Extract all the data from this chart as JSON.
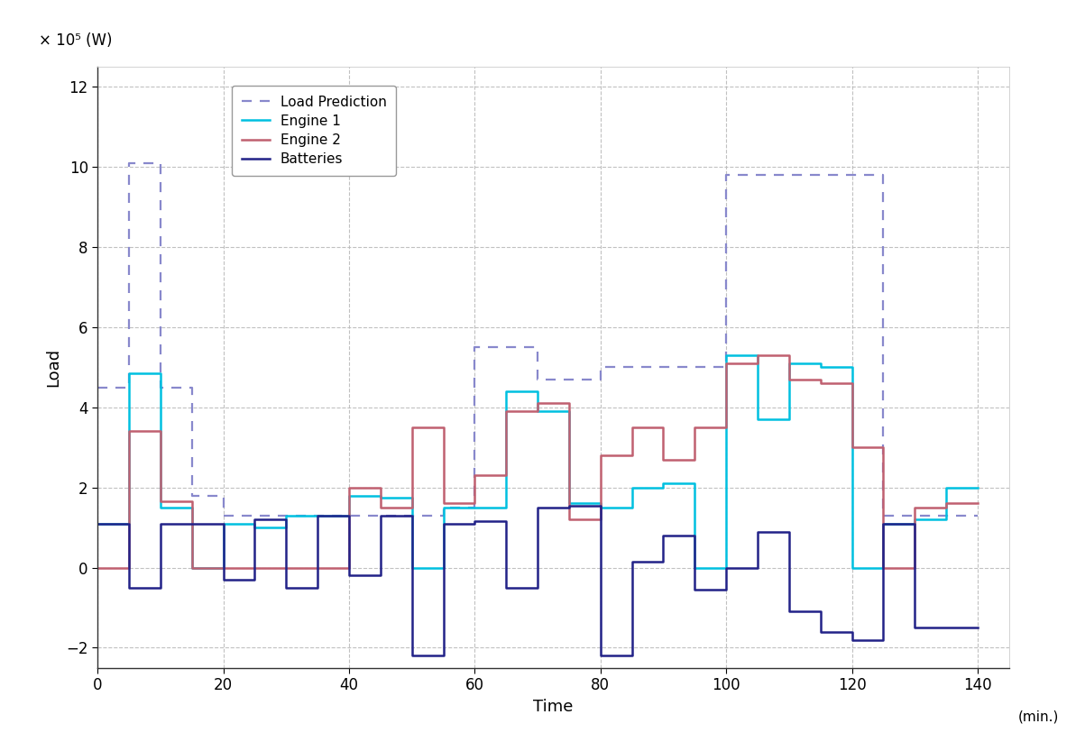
{
  "xlabel": "Time",
  "ylabel": "Load",
  "unit_label": "× 10⁵ (W)",
  "min_label": "(min.)",
  "ylim": [
    -2.5,
    12.5
  ],
  "xlim": [
    0,
    145
  ],
  "yticks": [
    -2,
    0,
    2,
    4,
    6,
    8,
    10,
    12
  ],
  "xticks": [
    0,
    20,
    40,
    60,
    80,
    100,
    120,
    140
  ],
  "background_color": "#ffffff",
  "grid_color": "#bbbbbb",
  "load_prediction_color": "#8888cc",
  "engine1_color": "#00c0e0",
  "engine2_color": "#c06070",
  "batteries_color": "#222288",
  "load_prediction_x": [
    0,
    5,
    10,
    15,
    20,
    25,
    30,
    35,
    40,
    45,
    50,
    55,
    60,
    65,
    70,
    75,
    80,
    85,
    90,
    95,
    100,
    105,
    110,
    115,
    120,
    125,
    130,
    135,
    140
  ],
  "load_prediction_y": [
    4.5,
    10.1,
    4.5,
    1.8,
    1.3,
    1.3,
    1.3,
    1.3,
    1.3,
    1.3,
    1.3,
    1.5,
    5.5,
    5.5,
    4.7,
    4.7,
    5.0,
    5.0,
    5.0,
    5.0,
    9.8,
    9.8,
    9.8,
    9.8,
    9.8,
    1.3,
    1.3,
    1.3,
    1.3
  ],
  "engine1_x": [
    0,
    5,
    10,
    15,
    20,
    25,
    30,
    35,
    40,
    45,
    50,
    55,
    60,
    65,
    70,
    75,
    80,
    85,
    90,
    95,
    100,
    105,
    110,
    115,
    120,
    125,
    130,
    135,
    140
  ],
  "engine1_y": [
    1.1,
    4.85,
    1.5,
    0.0,
    1.1,
    1.0,
    1.3,
    1.3,
    1.8,
    1.75,
    0.0,
    1.5,
    1.5,
    4.4,
    3.9,
    1.6,
    1.5,
    2.0,
    2.1,
    0.0,
    5.3,
    3.7,
    5.1,
    5.0,
    0.0,
    1.1,
    1.2,
    2.0,
    2.0
  ],
  "engine2_x": [
    0,
    5,
    10,
    15,
    20,
    25,
    30,
    35,
    40,
    45,
    50,
    55,
    60,
    65,
    70,
    75,
    80,
    85,
    90,
    95,
    100,
    105,
    110,
    115,
    120,
    125,
    130,
    135,
    140
  ],
  "engine2_y": [
    0.0,
    3.4,
    1.65,
    0.0,
    0.0,
    0.0,
    0.0,
    0.0,
    2.0,
    1.5,
    3.5,
    1.6,
    2.3,
    3.9,
    4.1,
    1.2,
    2.8,
    3.5,
    2.7,
    3.5,
    5.1,
    5.3,
    4.7,
    4.6,
    3.0,
    0.0,
    1.5,
    1.6,
    1.6
  ],
  "batteries_x": [
    0,
    5,
    10,
    15,
    20,
    25,
    30,
    35,
    40,
    45,
    50,
    55,
    60,
    65,
    70,
    75,
    80,
    85,
    90,
    95,
    100,
    105,
    110,
    115,
    120,
    125,
    130,
    135,
    140
  ],
  "batteries_y": [
    1.1,
    -0.5,
    1.1,
    1.1,
    -0.3,
    1.2,
    -0.5,
    1.3,
    -0.2,
    1.3,
    -2.2,
    1.1,
    1.15,
    -0.5,
    1.5,
    1.55,
    -2.2,
    0.15,
    0.8,
    -0.55,
    0.0,
    0.9,
    -1.1,
    -1.6,
    -1.8,
    1.1,
    -1.5,
    -1.5,
    -1.5
  ]
}
